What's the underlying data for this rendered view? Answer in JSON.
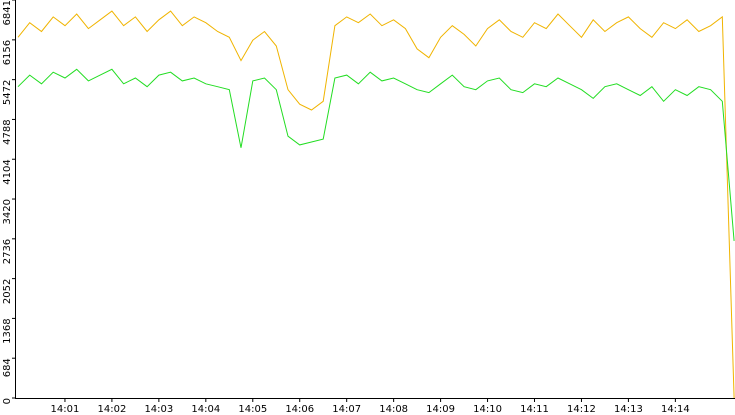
{
  "chart_data": {
    "type": "line",
    "x": [
      0,
      0.25,
      0.5,
      0.75,
      1,
      1.25,
      1.5,
      1.75,
      2,
      2.25,
      2.5,
      2.75,
      3,
      3.25,
      3.5,
      3.75,
      4,
      4.25,
      4.5,
      4.75,
      5,
      5.25,
      5.5,
      5.75,
      6,
      6.25,
      6.5,
      6.75,
      7,
      7.25,
      7.5,
      7.75,
      8,
      8.25,
      8.5,
      8.75,
      9,
      9.25,
      9.5,
      9.75,
      10,
      10.25,
      10.5,
      10.75,
      11,
      11.25,
      11.5,
      11.75,
      12,
      12.25,
      12.5,
      12.75,
      13,
      13.25,
      13.5,
      13.75,
      14,
      14.25,
      14.5,
      14.75,
      15,
      15.25
    ],
    "series": [
      {
        "color": "#f0b400",
        "values": [
          6200,
          6450,
          6300,
          6550,
          6400,
          6600,
          6350,
          6500,
          6650,
          6400,
          6550,
          6300,
          6500,
          6650,
          6400,
          6550,
          6450,
          6300,
          6200,
          5800,
          6150,
          6300,
          6050,
          5300,
          5050,
          4950,
          5100,
          6400,
          6550,
          6450,
          6600,
          6400,
          6500,
          6350,
          6000,
          5850,
          6200,
          6400,
          6250,
          6050,
          6350,
          6500,
          6300,
          6200,
          6450,
          6350,
          6600,
          6400,
          6200,
          6500,
          6300,
          6450,
          6550,
          6350,
          6200,
          6450,
          6350,
          6500,
          6300,
          6400,
          6550,
          0
        ]
      },
      {
        "color": "#22dd22",
        "values": [
          5350,
          5550,
          5400,
          5600,
          5500,
          5650,
          5450,
          5550,
          5650,
          5400,
          5500,
          5350,
          5550,
          5600,
          5450,
          5500,
          5400,
          5350,
          5300,
          4300,
          5450,
          5500,
          5300,
          4500,
          4350,
          4400,
          4450,
          5500,
          5550,
          5400,
          5600,
          5450,
          5500,
          5400,
          5300,
          5250,
          5400,
          5550,
          5350,
          5300,
          5450,
          5500,
          5300,
          5250,
          5400,
          5350,
          5500,
          5400,
          5300,
          5150,
          5350,
          5400,
          5300,
          5200,
          5350,
          5100,
          5300,
          5200,
          5350,
          5300,
          5100,
          2700
        ]
      }
    ],
    "xlim": [
      0,
      15.27
    ],
    "xticks": [
      {
        "value": 1,
        "label": "14:01"
      },
      {
        "value": 2,
        "label": "14:02"
      },
      {
        "value": 3,
        "label": "14:03"
      },
      {
        "value": 4,
        "label": "14:04"
      },
      {
        "value": 5,
        "label": "14:05"
      },
      {
        "value": 6,
        "label": "14:06"
      },
      {
        "value": 7,
        "label": "14:07"
      },
      {
        "value": 8,
        "label": "14:08"
      },
      {
        "value": 9,
        "label": "14:09"
      },
      {
        "value": 10,
        "label": "14:10"
      },
      {
        "value": 11,
        "label": "14:11"
      },
      {
        "value": 12,
        "label": "14:12"
      },
      {
        "value": 13,
        "label": "14:13"
      },
      {
        "value": 14,
        "label": "14:14"
      }
    ],
    "ylim": [
      0,
      6841
    ],
    "yticks": [
      0,
      684,
      1368,
      2052,
      2736,
      3420,
      4104,
      4788,
      5472,
      6156,
      6841
    ],
    "grid": false
  }
}
